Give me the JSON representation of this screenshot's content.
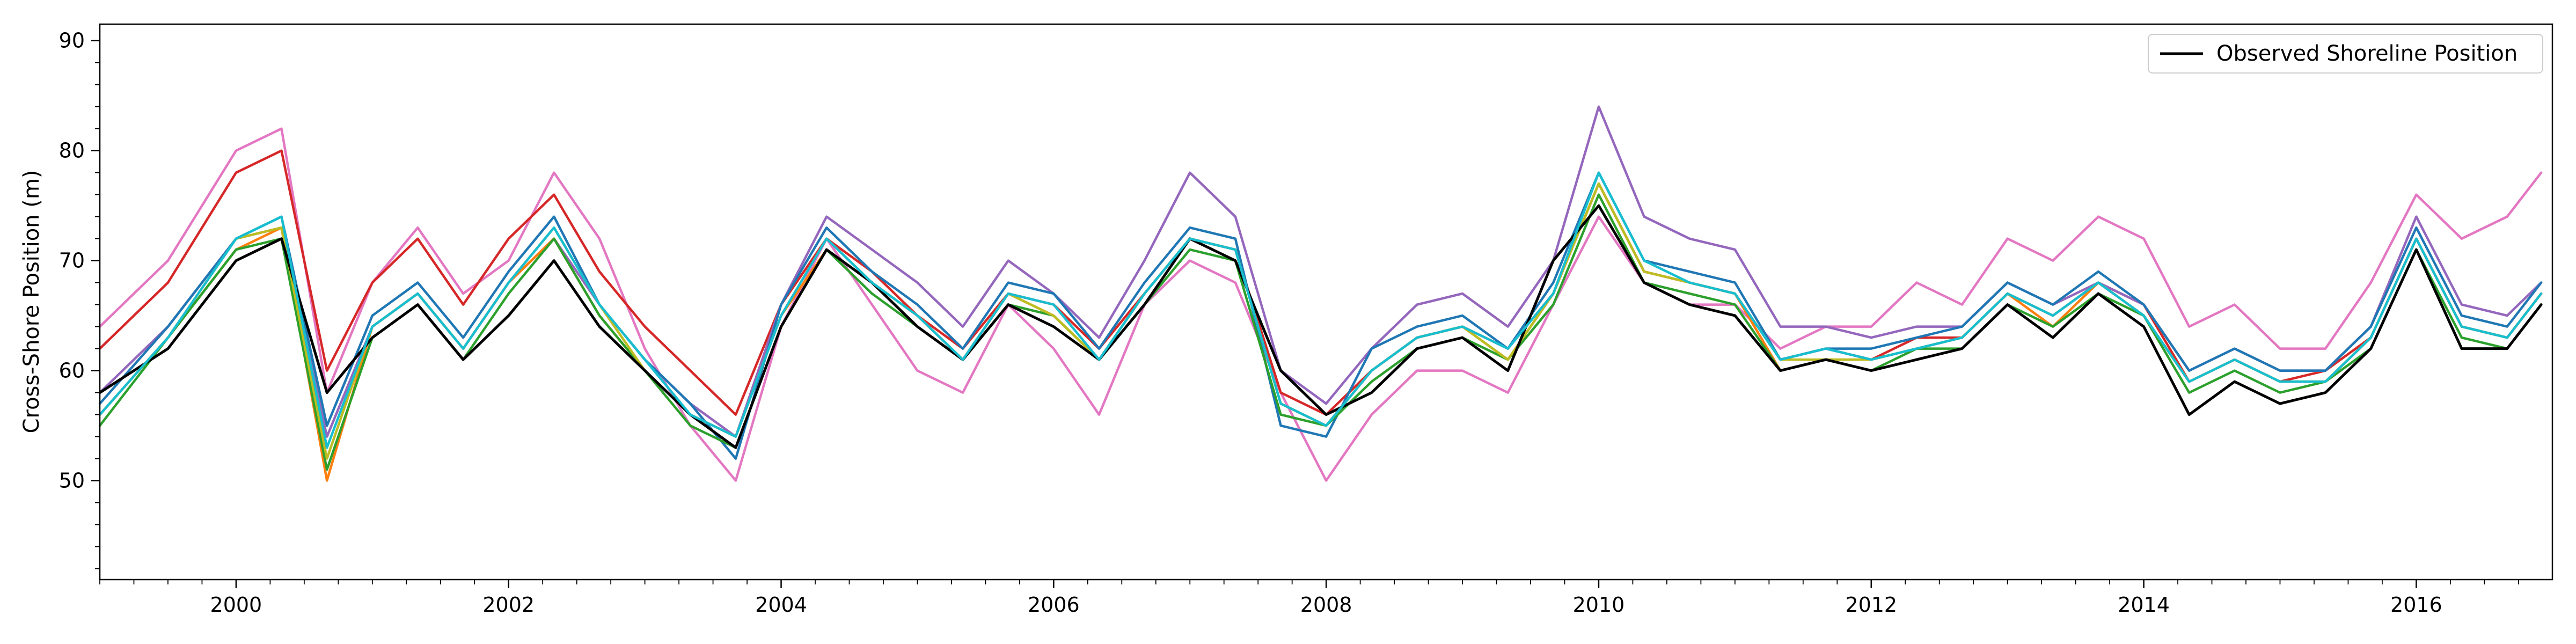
{
  "chart_data": {
    "type": "line",
    "title": "",
    "xlabel": "",
    "ylabel": "Cross-Shore Position (m)",
    "x_range": [
      "1999-01-01",
      "2016-12-31"
    ],
    "ylim": [
      41,
      91.5
    ],
    "x_ticks": [
      "2000",
      "2002",
      "2004",
      "2006",
      "2008",
      "2010",
      "2012",
      "2014",
      "2016"
    ],
    "y_ticks": [
      50,
      60,
      70,
      80,
      90
    ],
    "grid": false,
    "legend": {
      "position": "upper right",
      "entries": [
        "Observed Shoreline Position"
      ]
    },
    "x_sample_dates": [
      "1999-01",
      "1999-07",
      "2000-01",
      "2000-05",
      "2000-09",
      "2001-01",
      "2001-05",
      "2001-09",
      "2002-01",
      "2002-05",
      "2002-09",
      "2003-01",
      "2003-05",
      "2003-09",
      "2004-01",
      "2004-05",
      "2004-09",
      "2005-01",
      "2005-05",
      "2005-09",
      "2006-01",
      "2006-05",
      "2006-09",
      "2007-01",
      "2007-05",
      "2007-09",
      "2008-01",
      "2008-05",
      "2008-09",
      "2009-01",
      "2009-05",
      "2009-09",
      "2010-01",
      "2010-05",
      "2010-09",
      "2011-01",
      "2011-05",
      "2011-09",
      "2012-01",
      "2012-05",
      "2012-09",
      "2013-01",
      "2013-05",
      "2013-09",
      "2014-01",
      "2014-05",
      "2014-09",
      "2015-01",
      "2015-05",
      "2015-09",
      "2016-01",
      "2016-05",
      "2016-09",
      "2016-12"
    ],
    "series": [
      {
        "name": "Observed Shoreline Position",
        "color": "#000000",
        "values": [
          58,
          62,
          70,
          72,
          58,
          63,
          66,
          61,
          65,
          70,
          64,
          60,
          56,
          53,
          64,
          71,
          68,
          64,
          61,
          66,
          64,
          61,
          66,
          72,
          70,
          60,
          56,
          58,
          62,
          63,
          60,
          70,
          75,
          68,
          66,
          65,
          60,
          61,
          60,
          61,
          62,
          66,
          63,
          67,
          64,
          56,
          59,
          57,
          58,
          62,
          71,
          62,
          62,
          66
        ]
      },
      {
        "color": "#1f77b4",
        "values": [
          57,
          64,
          72,
          74,
          55,
          65,
          68,
          63,
          69,
          74,
          66,
          61,
          57,
          52,
          66,
          73,
          69,
          66,
          62,
          68,
          67,
          62,
          68,
          73,
          72,
          55,
          54,
          62,
          64,
          65,
          62,
          68,
          78,
          70,
          69,
          68,
          61,
          62,
          62,
          63,
          64,
          68,
          66,
          69,
          66,
          60,
          62,
          60,
          60,
          64,
          73,
          65,
          64,
          68
        ]
      },
      {
        "color": "#ff7f0e",
        "values": [
          56,
          63,
          71,
          73,
          50,
          64,
          67,
          62,
          68,
          72,
          65,
          60,
          56,
          54,
          65,
          71,
          68,
          65,
          61,
          67,
          65,
          61,
          67,
          72,
          71,
          57,
          55,
          60,
          63,
          64,
          61,
          67,
          77,
          69,
          68,
          67,
          60,
          61,
          61,
          62,
          63,
          67,
          64,
          68,
          65,
          59,
          61,
          59,
          59,
          63,
          72,
          64,
          63,
          67
        ]
      },
      {
        "color": "#2ca02c",
        "values": [
          55,
          63,
          71,
          72,
          51,
          63,
          66,
          61,
          67,
          72,
          65,
          60,
          55,
          53,
          64,
          71,
          67,
          64,
          61,
          66,
          65,
          61,
          66,
          71,
          70,
          56,
          55,
          59,
          62,
          63,
          61,
          66,
          76,
          68,
          67,
          66,
          60,
          61,
          60,
          62,
          62,
          66,
          64,
          67,
          65,
          58,
          60,
          58,
          59,
          62,
          71,
          63,
          62,
          66
        ]
      },
      {
        "color": "#d62728",
        "values": [
          62,
          68,
          78,
          80,
          60,
          68,
          72,
          66,
          72,
          76,
          69,
          64,
          60,
          56,
          66,
          72,
          69,
          65,
          62,
          67,
          66,
          62,
          67,
          72,
          71,
          58,
          56,
          60,
          63,
          64,
          62,
          67,
          77,
          69,
          68,
          67,
          61,
          62,
          61,
          63,
          63,
          67,
          65,
          68,
          66,
          59,
          61,
          59,
          60,
          63,
          72,
          64,
          63,
          67
        ]
      },
      {
        "color": "#9467bd",
        "values": [
          58,
          64,
          72,
          73,
          54,
          64,
          67,
          62,
          68,
          72,
          66,
          61,
          57,
          54,
          66,
          74,
          71,
          68,
          64,
          70,
          67,
          63,
          70,
          78,
          74,
          60,
          57,
          62,
          66,
          67,
          64,
          70,
          84,
          74,
          72,
          71,
          64,
          64,
          63,
          64,
          64,
          68,
          66,
          68,
          66,
          60,
          62,
          60,
          60,
          64,
          74,
          66,
          65,
          68
        ]
      },
      {
        "color": "#e377c2",
        "values": [
          64,
          70,
          80,
          82,
          58,
          68,
          73,
          67,
          70,
          78,
          72,
          62,
          55,
          50,
          64,
          72,
          66,
          60,
          58,
          66,
          62,
          56,
          66,
          70,
          68,
          58,
          50,
          56,
          60,
          60,
          58,
          66,
          74,
          68,
          66,
          66,
          62,
          64,
          64,
          68,
          66,
          72,
          70,
          74,
          72,
          64,
          66,
          62,
          62,
          68,
          76,
          72,
          74,
          78
        ]
      },
      {
        "color": "#bcbd22",
        "values": [
          56,
          63,
          72,
          73,
          52,
          64,
          67,
          62,
          68,
          73,
          66,
          60,
          56,
          54,
          65,
          72,
          68,
          65,
          61,
          67,
          65,
          61,
          67,
          72,
          71,
          57,
          55,
          60,
          63,
          64,
          61,
          67,
          77,
          69,
          68,
          67,
          61,
          61,
          61,
          62,
          63,
          67,
          65,
          68,
          65,
          59,
          61,
          59,
          59,
          63,
          72,
          64,
          63,
          67
        ]
      },
      {
        "color": "#17becf",
        "values": [
          56,
          63,
          72,
          74,
          53,
          64,
          67,
          62,
          68,
          73,
          66,
          61,
          56,
          54,
          65,
          72,
          68,
          65,
          61,
          67,
          66,
          61,
          67,
          72,
          71,
          57,
          55,
          60,
          63,
          64,
          62,
          67,
          78,
          70,
          68,
          67,
          61,
          62,
          61,
          62,
          63,
          67,
          65,
          68,
          65,
          59,
          61,
          59,
          59,
          63,
          72,
          64,
          63,
          67
        ]
      }
    ]
  }
}
